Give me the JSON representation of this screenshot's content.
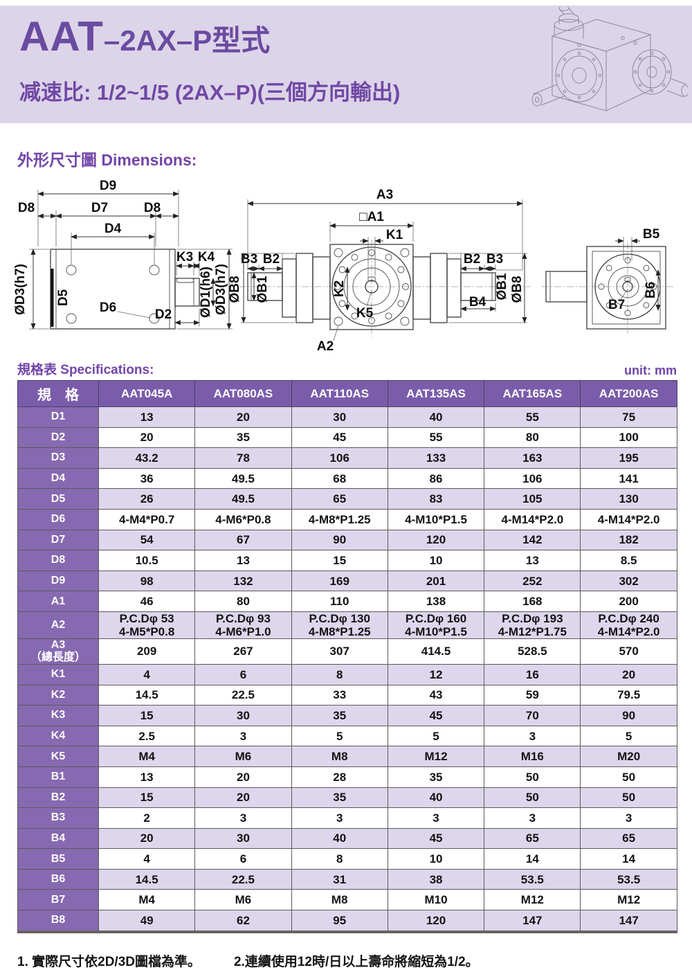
{
  "header": {
    "title_main": "AAT",
    "title_suffix": "–2AX–P型式",
    "subtitle": "减速比: 1/2~1/5 (2AX–P)(三個方向輸出)"
  },
  "sections": {
    "dimensions_label": "外形尺寸圖 Dimensions:",
    "spec_label": "規格表 Specifications:",
    "unit_label": "unit: mm"
  },
  "diagram": {
    "left": {
      "d9": "D9",
      "d8_left": "D8",
      "d7": "D7",
      "d8_right": "D8",
      "d4": "D4",
      "k3": "K3",
      "k4": "K4",
      "dia_d3_left": "ØD3(h7)",
      "d5": "D5",
      "d6": "D6",
      "d2": "D2",
      "dia_d1": "ØD1(h6)",
      "dia_d3_right": "ØD3(h7)"
    },
    "center": {
      "a3": "A3",
      "a1": "□A1",
      "k1": "K1",
      "b3_left": "B3",
      "b2_left": "B2",
      "dia_b8_left": "ØB8",
      "dia_b1_left": "ØB1",
      "k2": "K2",
      "k5": "K5",
      "b2_right": "B2",
      "b3_right": "B3",
      "b4": "B4",
      "dia_b1_right": "ØB1",
      "dia_b8_right": "ØB8",
      "a2": "A2"
    },
    "right": {
      "b5": "B5",
      "b6": "B6",
      "b7": "B7"
    }
  },
  "table": {
    "header": [
      "規　格",
      "AAT045A",
      "AAT080AS",
      "AAT110AS",
      "AAT135AS",
      "AAT165AS",
      "AAT200AS"
    ],
    "rows": [
      {
        "label": "D1",
        "values": [
          "13",
          "20",
          "30",
          "40",
          "55",
          "75"
        ]
      },
      {
        "label": "D2",
        "values": [
          "20",
          "35",
          "45",
          "55",
          "80",
          "100"
        ]
      },
      {
        "label": "D3",
        "values": [
          "43.2",
          "78",
          "106",
          "133",
          "163",
          "195"
        ]
      },
      {
        "label": "D4",
        "values": [
          "36",
          "49.5",
          "68",
          "86",
          "106",
          "141"
        ]
      },
      {
        "label": "D5",
        "values": [
          "26",
          "49.5",
          "65",
          "83",
          "105",
          "130"
        ]
      },
      {
        "label": "D6",
        "values": [
          "4-M4*P0.7",
          "4-M6*P0.8",
          "4-M8*P1.25",
          "4-M10*P1.5",
          "4-M14*P2.0",
          "4-M14*P2.0"
        ]
      },
      {
        "label": "D7",
        "values": [
          "54",
          "67",
          "90",
          "120",
          "142",
          "182"
        ]
      },
      {
        "label": "D8",
        "values": [
          "10.5",
          "13",
          "15",
          "10",
          "13",
          "8.5"
        ]
      },
      {
        "label": "D9",
        "values": [
          "98",
          "132",
          "169",
          "201",
          "252",
          "302"
        ]
      },
      {
        "label": "A1",
        "values": [
          "46",
          "80",
          "110",
          "138",
          "168",
          "200"
        ]
      },
      {
        "label": "A2",
        "values": [
          "P.C.Dφ 53\n4-M5*P0.8",
          "P.C.Dφ 93\n4-M6*P1.0",
          "P.C.Dφ 130\n4-M8*P1.25",
          "P.C.Dφ 160\n4-M10*P1.5",
          "P.C.Dφ 193\n4-M12*P1.75",
          "P.C.Dφ 240\n4-M14*P2.0"
        ]
      },
      {
        "label": "A3\n（總長度）",
        "values": [
          "209",
          "267",
          "307",
          "414.5",
          "528.5",
          "570"
        ]
      },
      {
        "label": "K1",
        "values": [
          "4",
          "6",
          "8",
          "12",
          "16",
          "20"
        ]
      },
      {
        "label": "K2",
        "values": [
          "14.5",
          "22.5",
          "33",
          "43",
          "59",
          "79.5"
        ]
      },
      {
        "label": "K3",
        "values": [
          "15",
          "30",
          "35",
          "45",
          "70",
          "90"
        ]
      },
      {
        "label": "K4",
        "values": [
          "2.5",
          "3",
          "5",
          "5",
          "3",
          "5"
        ]
      },
      {
        "label": "K5",
        "values": [
          "M4",
          "M6",
          "M8",
          "M12",
          "M16",
          "M20"
        ]
      },
      {
        "label": "B1",
        "values": [
          "13",
          "20",
          "28",
          "35",
          "50",
          "50"
        ]
      },
      {
        "label": "B2",
        "values": [
          "15",
          "20",
          "35",
          "40",
          "50",
          "50"
        ]
      },
      {
        "label": "B3",
        "values": [
          "2",
          "3",
          "3",
          "3",
          "3",
          "3"
        ]
      },
      {
        "label": "B4",
        "values": [
          "20",
          "30",
          "40",
          "45",
          "65",
          "65"
        ]
      },
      {
        "label": "B5",
        "values": [
          "4",
          "6",
          "8",
          "10",
          "14",
          "14"
        ]
      },
      {
        "label": "B6",
        "values": [
          "14.5",
          "22.5",
          "31",
          "38",
          "53.5",
          "53.5"
        ]
      },
      {
        "label": "B7",
        "values": [
          "M4",
          "M6",
          "M8",
          "M10",
          "M12",
          "M12"
        ]
      },
      {
        "label": "B8",
        "values": [
          "49",
          "62",
          "95",
          "120",
          "147",
          "147"
        ]
      }
    ]
  },
  "notes": {
    "note1": "1. 實際尺寸依2D/3D圖檔為準。",
    "note2": "2.連續使用12時/日以上壽命將縮短為1/2。"
  },
  "colors": {
    "accent_purple": "#7b5caa",
    "label_purple": "#8769b1",
    "band_lavender": "#dcd4e8",
    "row_lavender": "#ded6ec",
    "title_purple": "#6b4ba1"
  }
}
